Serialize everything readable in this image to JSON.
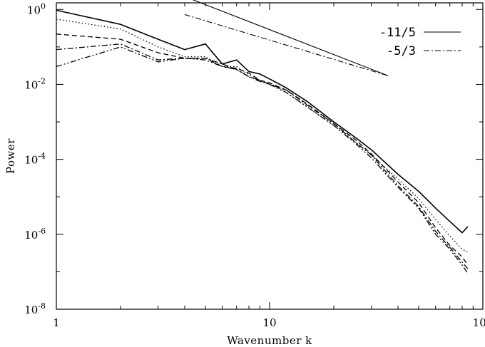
{
  "chart_data": {
    "type": "line",
    "xlabel": "Wavenumber k",
    "ylabel": "Power",
    "xscale": "log",
    "yscale": "log",
    "xlim": [
      1,
      100
    ],
    "ylim": [
      1e-08,
      1.5
    ],
    "x_ticks": [
      {
        "value": 1,
        "label": "1"
      },
      {
        "value": 10,
        "label": "10"
      },
      {
        "value": 100,
        "label": "100"
      }
    ],
    "y_ticks": [
      {
        "value": 1,
        "base": "10",
        "exp": "0"
      },
      {
        "value": 0.01,
        "base": "10",
        "exp": "-2"
      },
      {
        "value": 0.0001,
        "base": "10",
        "exp": "-4"
      },
      {
        "value": 1e-06,
        "base": "10",
        "exp": "-6"
      },
      {
        "value": 1e-08,
        "base": "10",
        "exp": "-8"
      }
    ],
    "legend": {
      "placement": "top-right",
      "entries": [
        {
          "label": "-11/5",
          "dash": "solid"
        },
        {
          "label": "-5/3",
          "dash": "dashdot"
        }
      ]
    },
    "reference_lines": [
      {
        "label": "-11/5",
        "dash": "solid",
        "x": [
          4,
          36
        ],
        "y": [
          2.2,
          0.017
        ]
      },
      {
        "label": "-5/3",
        "dash": "dashdot",
        "x": [
          4,
          36
        ],
        "y": [
          0.73,
          0.017
        ]
      }
    ],
    "series": [
      {
        "dash": "solid",
        "width": 1.6,
        "x": [
          1,
          2,
          3,
          4,
          5,
          6,
          7,
          8,
          9,
          10,
          12,
          15,
          20,
          25,
          30,
          40,
          50,
          60,
          70,
          80,
          85
        ],
        "y": [
          0.95,
          0.4,
          0.16,
          0.085,
          0.12,
          0.035,
          0.045,
          0.022,
          0.019,
          0.014,
          0.008,
          0.0035,
          0.001,
          0.0004,
          0.00018,
          4e-05,
          1.4e-05,
          5e-06,
          2.2e-06,
          1.1e-06,
          1.6e-06
        ]
      },
      {
        "dash": "dotted",
        "width": 1.3,
        "x": [
          1,
          2,
          3,
          4,
          5,
          6,
          7,
          8,
          9,
          10,
          12,
          15,
          20,
          25,
          30,
          40,
          50,
          60,
          70,
          80,
          85
        ],
        "y": [
          0.55,
          0.3,
          0.1,
          0.055,
          0.055,
          0.03,
          0.03,
          0.018,
          0.012,
          0.011,
          0.006,
          0.0025,
          0.0008,
          0.0003,
          0.00013,
          3e-05,
          9e-06,
          2.5e-06,
          9e-07,
          4e-07,
          3.3e-07
        ]
      },
      {
        "dash": "dashed",
        "width": 1.3,
        "x": [
          1,
          2,
          3,
          4,
          5,
          6,
          7,
          8,
          9,
          10,
          12,
          15,
          20,
          25,
          30,
          40,
          50,
          60,
          70,
          80,
          85
        ],
        "y": [
          0.22,
          0.16,
          0.07,
          0.05,
          0.05,
          0.03,
          0.027,
          0.02,
          0.013,
          0.011,
          0.007,
          0.003,
          0.0009,
          0.00035,
          0.00014,
          2.5e-05,
          7e-06,
          1.5e-06,
          5e-07,
          2.5e-07,
          1.5e-07
        ]
      },
      {
        "dash": "dashdot",
        "width": 1.3,
        "x": [
          1,
          2,
          3,
          4,
          5,
          6,
          7,
          8,
          9,
          10,
          12,
          15,
          20,
          25,
          30,
          40,
          50,
          60,
          70,
          80,
          85
        ],
        "y": [
          0.085,
          0.12,
          0.045,
          0.05,
          0.05,
          0.035,
          0.025,
          0.016,
          0.013,
          0.01,
          0.007,
          0.0028,
          0.0009,
          0.0003,
          0.00013,
          2e-05,
          5.5e-06,
          1.2e-06,
          4.5e-07,
          1.8e-07,
          1.2e-07
        ]
      },
      {
        "dash": "dashdotdot",
        "width": 1.3,
        "x": [
          1,
          2,
          3,
          4,
          5,
          6,
          7,
          8,
          9,
          10,
          12,
          15,
          20,
          25,
          30,
          40,
          50,
          60,
          70,
          80,
          85
        ],
        "y": [
          0.03,
          0.1,
          0.04,
          0.05,
          0.045,
          0.03,
          0.025,
          0.016,
          0.012,
          0.01,
          0.006,
          0.0025,
          0.0008,
          0.00028,
          0.00011,
          1.8e-05,
          5e-06,
          1e-06,
          4e-07,
          1.5e-07,
          9e-08
        ]
      }
    ]
  }
}
